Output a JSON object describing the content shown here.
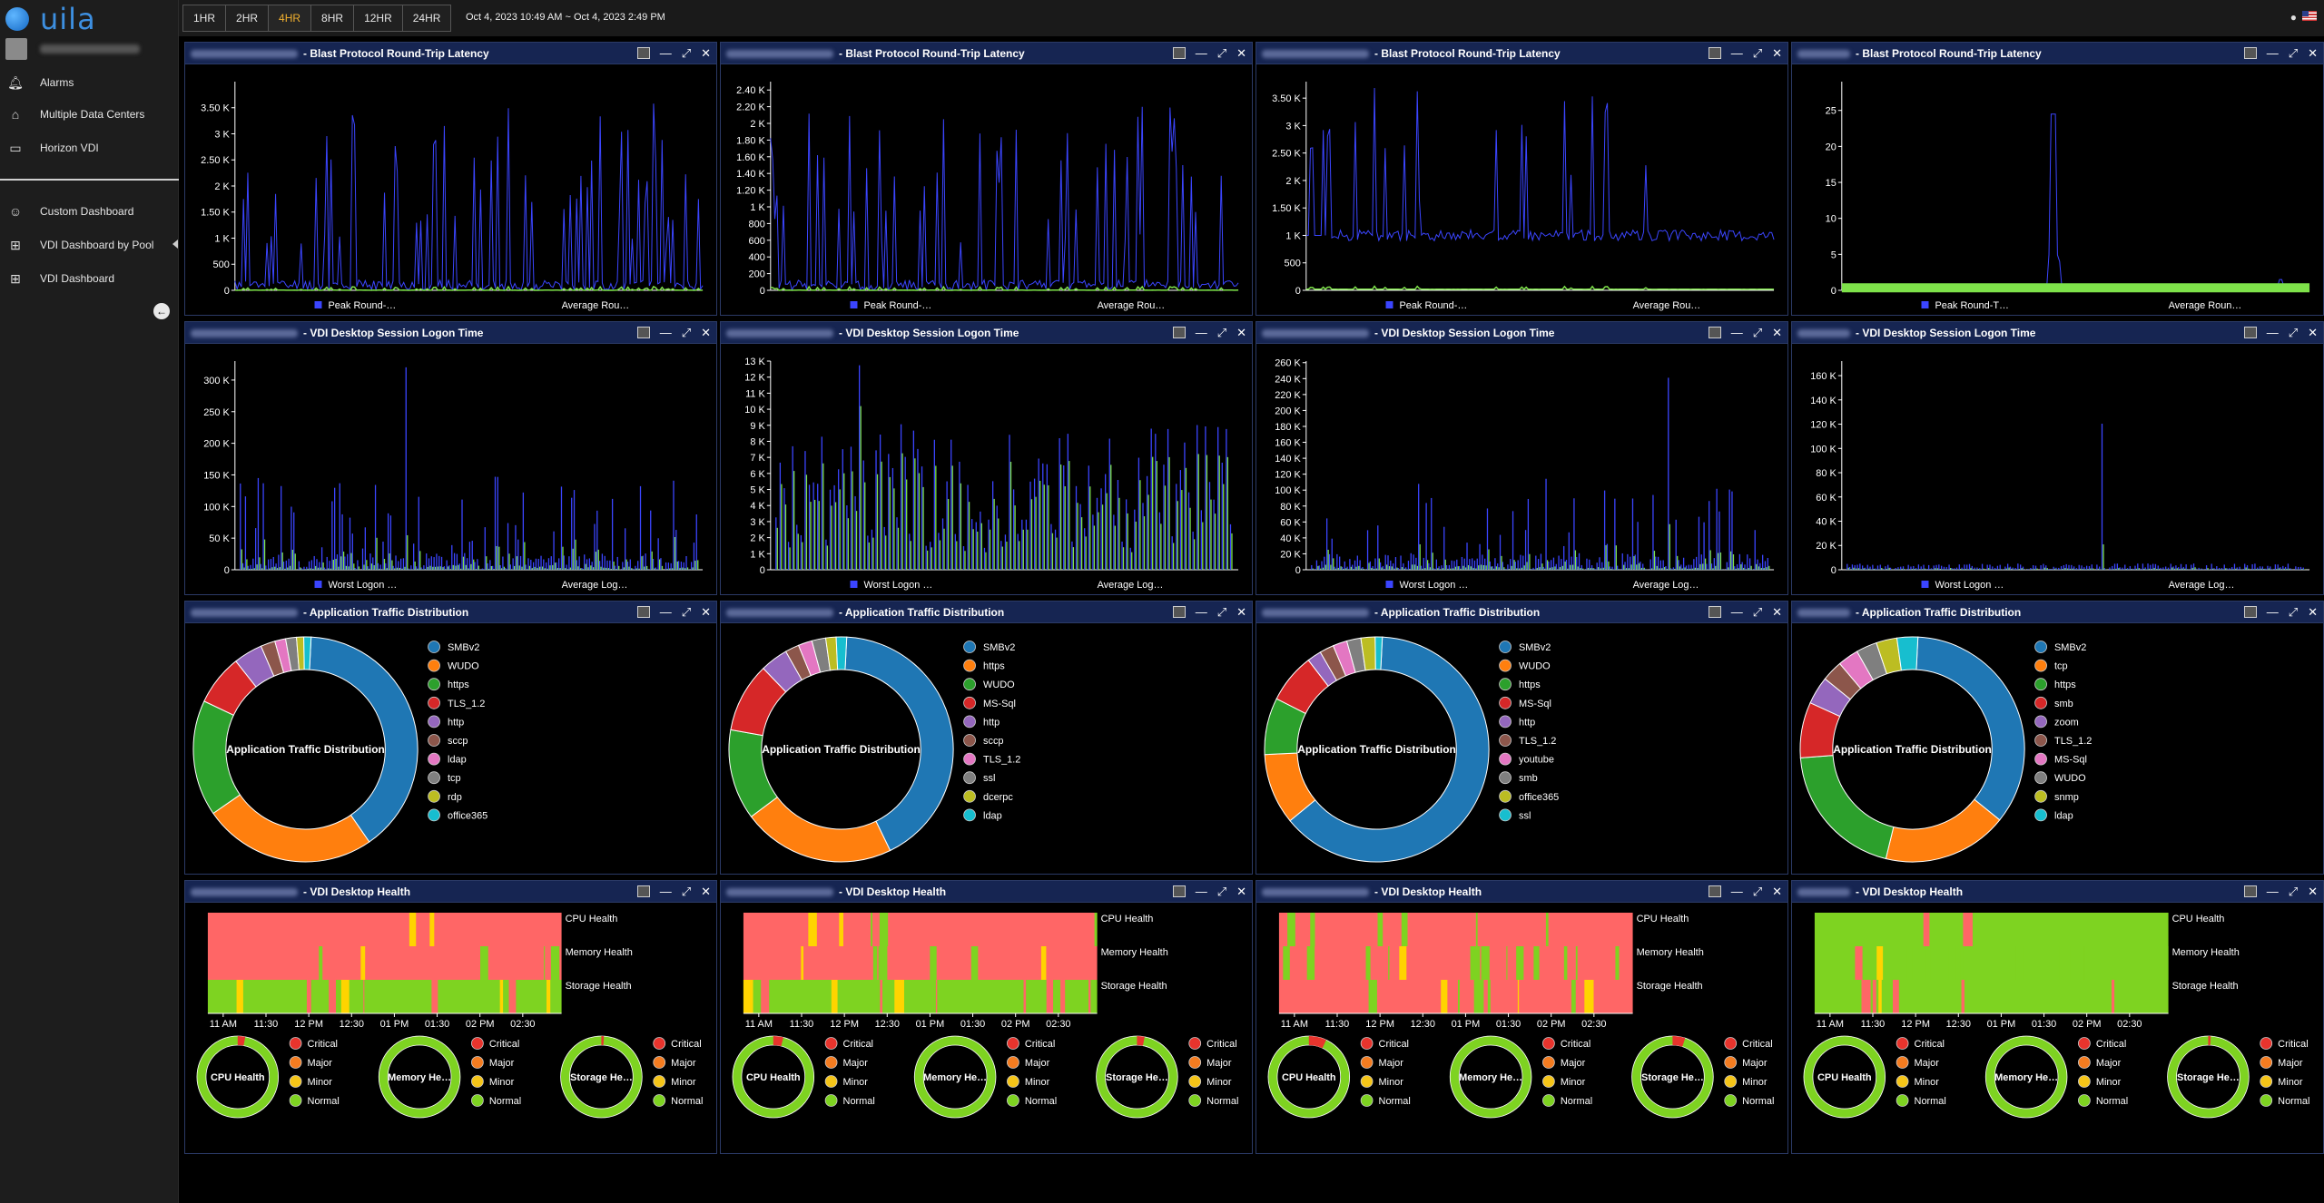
{
  "app": {
    "brand": "uila"
  },
  "sidebar": {
    "items": [
      {
        "label": "Alarms",
        "icon": "bell-icon"
      },
      {
        "label": "Multiple Data Centers",
        "icon": "home-icon"
      },
      {
        "label": "Horizon VDI",
        "icon": "monitor-icon"
      },
      {
        "label": "Custom Dashboard",
        "icon": "user-gear-icon"
      },
      {
        "label": "VDI Dashboard by Pool",
        "icon": "grid-icon"
      },
      {
        "label": "VDI Dashboard",
        "icon": "grid-icon"
      }
    ]
  },
  "toolbar": {
    "ranges": [
      "1HR",
      "2HR",
      "4HR",
      "8HR",
      "12HR",
      "24HR"
    ],
    "active_range": "4HR",
    "date_range": "Oct 4, 2023 10:49 AM ~ Oct 4, 2023 2:49 PM"
  },
  "colors": {
    "peak": "#3b45ff",
    "average": "#7ee24a",
    "accent": "#f1b02e",
    "header": "#162552",
    "bad": "#ff6666",
    "warn": "#ffd400",
    "ok": "#7ed321"
  },
  "latency": {
    "title": "- Blast Protocol Round-Trip Latency",
    "legend": [
      "Peak Round-…",
      "Average Rou…"
    ],
    "panels": [
      {
        "ymax": 4000,
        "ticks": [
          "0",
          "500",
          "1 K",
          "1.50 K",
          "2 K",
          "2.50 K",
          "3 K",
          "3.50 K"
        ],
        "tick_values": [
          0,
          500,
          1000,
          1500,
          2000,
          2500,
          3000,
          3500
        ],
        "profile": "a"
      },
      {
        "ymax": 2500,
        "ticks": [
          "0",
          "200",
          "400",
          "600",
          "800",
          "1 K",
          "1.20 K",
          "1.40 K",
          "1.60 K",
          "1.80 K",
          "2 K",
          "2.20 K",
          "2.40 K"
        ],
        "tick_values": [
          0,
          200,
          400,
          600,
          800,
          1000,
          1200,
          1400,
          1600,
          1800,
          2000,
          2200,
          2400
        ],
        "profile": "b"
      },
      {
        "ymax": 3800,
        "ticks": [
          "0",
          "500",
          "1 K",
          "1.50 K",
          "2 K",
          "2.50 K",
          "3 K",
          "3.50 K"
        ],
        "tick_values": [
          0,
          500,
          1000,
          1500,
          2000,
          2500,
          3000,
          3500
        ],
        "profile": "c"
      },
      {
        "ymax": 29,
        "ticks": [
          "0",
          "5",
          "10",
          "15",
          "20",
          "25"
        ],
        "tick_values": [
          0,
          5,
          10,
          15,
          20,
          25
        ],
        "profile": "d"
      }
    ],
    "legend_panel4": [
      "Peak Round-T…",
      "Average Roun…"
    ]
  },
  "logon": {
    "title": "- VDI Desktop Session Logon Time",
    "legend": [
      "Worst Logon …",
      "Average Log…"
    ],
    "panels": [
      {
        "ymax": 330000,
        "ticks": [
          "0",
          "50 K",
          "100 K",
          "150 K",
          "200 K",
          "250 K",
          "300 K"
        ],
        "tick_values": [
          0,
          50000,
          100000,
          150000,
          200000,
          250000,
          300000
        ],
        "profile": "a"
      },
      {
        "ymax": 13000,
        "ticks": [
          "0",
          "1 K",
          "2 K",
          "3 K",
          "4 K",
          "5 K",
          "6 K",
          "7 K",
          "8 K",
          "9 K",
          "10 K",
          "11 K",
          "12 K",
          "13 K"
        ],
        "tick_values": [
          0,
          1000,
          2000,
          3000,
          4000,
          5000,
          6000,
          7000,
          8000,
          9000,
          10000,
          11000,
          12000,
          13000
        ],
        "profile": "b"
      },
      {
        "ymax": 262000,
        "ticks": [
          "0",
          "20 K",
          "40 K",
          "60 K",
          "80 K",
          "100 K",
          "120 K",
          "140 K",
          "160 K",
          "180 K",
          "200 K",
          "220 K",
          "240 K",
          "260 K"
        ],
        "tick_values": [
          0,
          20000,
          40000,
          60000,
          80000,
          100000,
          120000,
          140000,
          160000,
          180000,
          200000,
          220000,
          240000,
          260000
        ],
        "profile": "c"
      },
      {
        "ymax": 172000,
        "ticks": [
          "0",
          "20 K",
          "40 K",
          "60 K",
          "80 K",
          "100 K",
          "120 K",
          "140 K",
          "160 K"
        ],
        "tick_values": [
          0,
          20000,
          40000,
          60000,
          80000,
          100000,
          120000,
          140000,
          160000
        ],
        "profile": "d"
      }
    ]
  },
  "traffic": {
    "title": "- Application Traffic Distribution",
    "center_label": "Application Traffic Distribution",
    "panels": [
      {
        "labels": [
          "SMBv2",
          "WUDO",
          "https",
          "TLS_1.2",
          "http",
          "sccp",
          "ldap",
          "tcp",
          "rdp",
          "office365"
        ],
        "values": [
          38,
          24,
          16,
          7,
          4,
          2,
          1.5,
          1.5,
          1,
          1
        ]
      },
      {
        "labels": [
          "SMBv2",
          "https",
          "WUDO",
          "MS-Sql",
          "http",
          "sccp",
          "TLS_1.2",
          "ssl",
          "dcerpc",
          "ldap"
        ],
        "values": [
          42,
          22,
          13,
          10,
          4,
          2,
          2,
          2,
          1.5,
          1.5
        ]
      },
      {
        "labels": [
          "SMBv2",
          "WUDO",
          "https",
          "MS-Sql",
          "http",
          "TLS_1.2",
          "youtube",
          "smb",
          "office365",
          "ssl"
        ],
        "values": [
          62,
          10,
          8,
          7,
          2,
          2,
          2,
          2,
          2,
          1
        ]
      },
      {
        "labels": [
          "SMBv2",
          "tcp",
          "https",
          "smb",
          "zoom",
          "TLS_1.2",
          "MS-Sql",
          "WUDO",
          "snmp",
          "ldap"
        ],
        "values": [
          35,
          18,
          20,
          8,
          4,
          3,
          3,
          3,
          3,
          3
        ]
      }
    ],
    "palette": [
      "#1f77b4",
      "#ff7f0e",
      "#2ca02c",
      "#d62728",
      "#9467bd",
      "#8c564b",
      "#e377c2",
      "#7f7f7f",
      "#bcbd22",
      "#17becf"
    ]
  },
  "health": {
    "title": "- VDI Desktop Health",
    "rows": [
      "CPU Health",
      "Memory Health",
      "Storage Health"
    ],
    "xticks": [
      "11 AM",
      "11:30",
      "12 PM",
      "12:30",
      "01 PM",
      "01:30",
      "02 PM",
      "02:30"
    ],
    "legend": [
      "Critical",
      "Major",
      "Minor",
      "Normal"
    ],
    "legend_colors": [
      "#e8342d",
      "#f47c20",
      "#f5c518",
      "#7ed321"
    ],
    "donut_labels": [
      "CPU Health",
      "Memory He…",
      "Storage He…"
    ],
    "panels": [
      {
        "profile": "a",
        "donut_bad": [
          0.03,
          0.0,
          0.01
        ]
      },
      {
        "profile": "b",
        "donut_bad": [
          0.04,
          0.0,
          0.03
        ]
      },
      {
        "profile": "c",
        "donut_bad": [
          0.07,
          0.0,
          0.05
        ]
      },
      {
        "profile": "d",
        "donut_bad": [
          0.0,
          0.0,
          0.01
        ]
      }
    ]
  }
}
